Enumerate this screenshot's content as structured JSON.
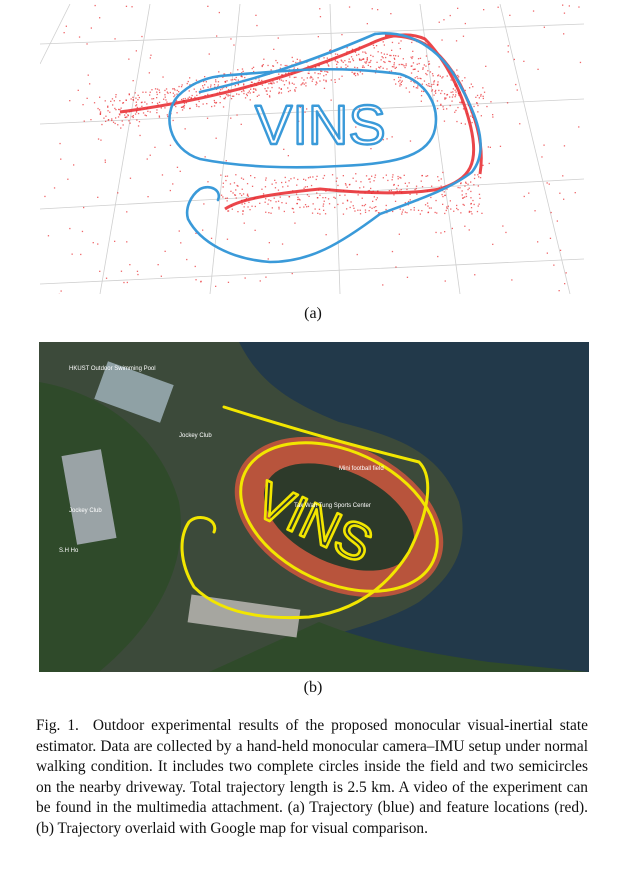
{
  "figure": {
    "panel_a_label": "(a)",
    "panel_b_label": "(b)",
    "caption_label": "Fig. 1.",
    "caption_text": "Outdoor experimental results of the proposed monocular visual-inertial state estimator. Data are collected by a hand-held monocular camera–IMU setup under normal walking condition. It includes two complete circles inside the field and two semicircles on the nearby driveway. Total trajectory length is 2.5 km. A video of the experiment can be found in the multimedia attachment. (a) Trajectory (blue) and feature locations (red). (b) Trajectory overlaid with Google map for visual comparison."
  },
  "trajectory_text": "VINS",
  "map_labels": {
    "pool": "HKUST Outdoor Swimming Pool",
    "club": "Jockey Club",
    "field": "Mini football field",
    "center": "Tak Wah Tung Sports Center",
    "hall": "Jockey Club",
    "area": "S.H Ho"
  },
  "colors": {
    "trajectory_a": "#3a9ad9",
    "features": "#e8262b",
    "trajectory_b": "#f2e600",
    "track": "#b8543c",
    "sea": "#22394a",
    "forest": "#2f4a2a"
  }
}
